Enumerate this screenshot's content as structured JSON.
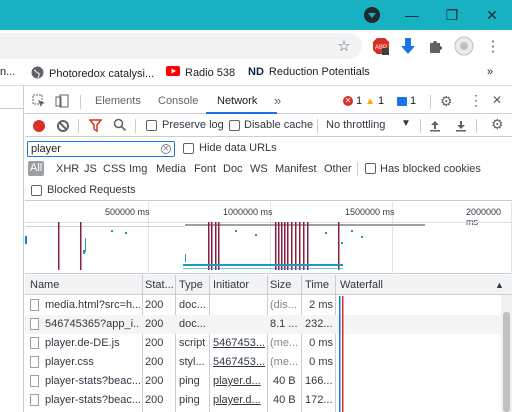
{
  "window": {
    "minimize_glyph": "—",
    "restore_glyph": "❐",
    "close_glyph": "✕"
  },
  "bookmarks": [
    {
      "label": "n...",
      "icon": "folder-icon"
    },
    {
      "label": "Photoredox catalysi...",
      "icon": "globe-icon"
    },
    {
      "label": "Radio 538",
      "icon": "youtube-icon"
    },
    {
      "label": "Reduction Potentials",
      "icon": "notre-dame-icon"
    }
  ],
  "bookmarks_overflow": "»",
  "devtools": {
    "tabs": [
      "Elements",
      "Console",
      "Network"
    ],
    "more_tabs": "»",
    "error_count": "1",
    "warning_count": "1",
    "info_count": "1",
    "preserve_log": "Preserve log",
    "disable_cache": "Disable cache",
    "throttling": "No throttling",
    "filter_value": "player",
    "hide_data_urls": "Hide data URLs",
    "type_filters": [
      "All",
      "XHR",
      "JS",
      "CSS",
      "Img",
      "Media",
      "Font",
      "Doc",
      "WS",
      "Manifest",
      "Other"
    ],
    "has_blocked_cookies": "Has blocked cookies",
    "blocked_requests": "Blocked Requests"
  },
  "overview": {
    "ticks": [
      "500000 ms",
      "1000000 ms",
      "1500000 ms",
      "2000000 ms"
    ]
  },
  "table": {
    "headers": [
      "Name",
      "Stat...",
      "Type",
      "Initiator",
      "Size",
      "Time",
      "Waterfall"
    ],
    "rows": [
      {
        "name": "media.html?src=h...",
        "status": "200",
        "type": "doc...",
        "initiator": "",
        "size": "(dis...",
        "time": "2 ms"
      },
      {
        "name": "546745365?app_i...",
        "status": "200",
        "type": "doc...",
        "initiator": "",
        "size": "8.1 ...",
        "time": "232..."
      },
      {
        "name": "player.de-DE.js",
        "status": "200",
        "type": "script",
        "initiator": "5467453...",
        "size": "(me...",
        "time": "0 ms"
      },
      {
        "name": "player.css",
        "status": "200",
        "type": "styl...",
        "initiator": "5467453...",
        "size": "(me...",
        "time": "0 ms"
      },
      {
        "name": "player-stats?beac...",
        "status": "200",
        "type": "ping",
        "initiator": "player.d...",
        "size": "40 B",
        "time": "166..."
      },
      {
        "name": "player-stats?beac...",
        "status": "200",
        "type": "ping",
        "initiator": "player.d...",
        "size": "40 B",
        "time": "172..."
      }
    ]
  },
  "colors": {
    "titlebar": "#17b1c1",
    "accent": "#1a73e8",
    "record": "#d93025"
  }
}
